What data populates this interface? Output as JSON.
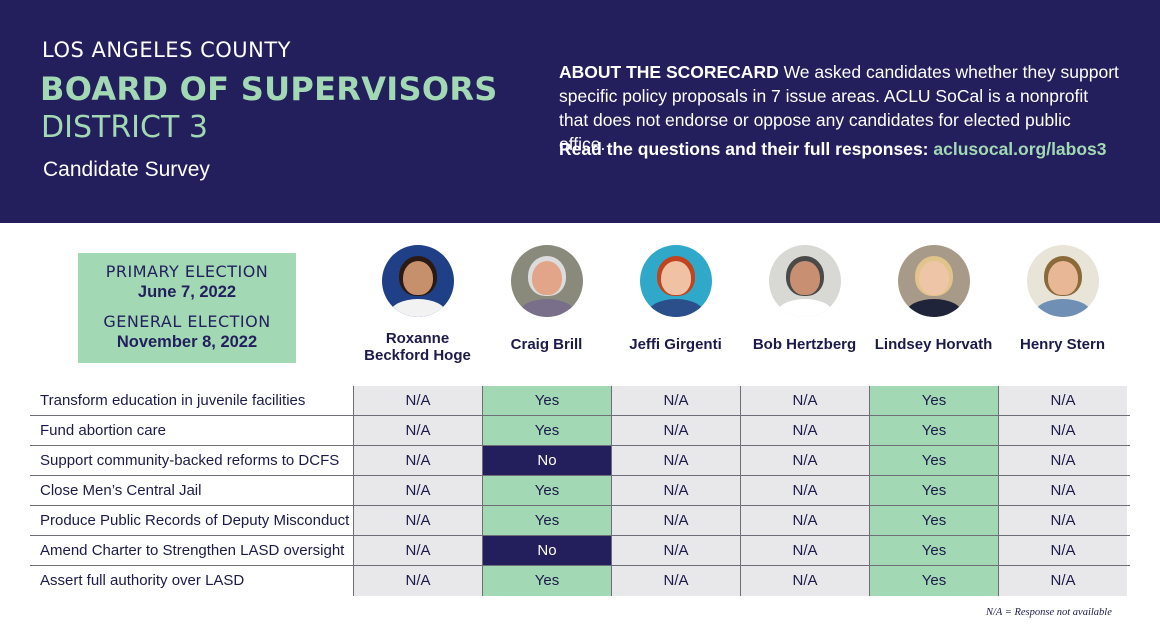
{
  "header": {
    "county": "LOS ANGELES COUNTY",
    "board": "BOARD OF SUPERVISORS",
    "district": "DISTRICT 3",
    "survey": "Candidate Survey",
    "about_label": "ABOUT THE SCORECARD",
    "about_text": "We asked candidates whether they support specific policy proposals in 7 issue areas. ACLU SoCal is a nonprofit that does not endorse or oppose any candidates for elected public office.",
    "read_text": "Read the questions and their full responses:",
    "read_link": "aclusocal.org/labos3"
  },
  "dates": {
    "primary_label": "PRIMARY ELECTION",
    "primary_date": "June 7, 2022",
    "general_label": "GENERAL ELECTION",
    "general_date": "November 8, 2022"
  },
  "candidates": [
    {
      "name_line1": "Roxanne",
      "name_line2": "Beckford Hoge",
      "photo_bg": "#1f3f86",
      "hair": "#2a1a12",
      "skin": "#c7906d",
      "shirt": "#f2f2f2"
    },
    {
      "name_line1": "Craig Brill",
      "name_line2": "",
      "photo_bg": "#8a8a7c",
      "hair": "#dcdcdc",
      "skin": "#e2a58a",
      "shirt": "#7a6f8a"
    },
    {
      "name_line1": "Jeffi Girgenti",
      "name_line2": "",
      "photo_bg": "#2fa8c9",
      "hair": "#c0441e",
      "skin": "#f0c2a3",
      "shirt": "#2a4f8a"
    },
    {
      "name_line1": "Bob Hertzberg",
      "name_line2": "",
      "photo_bg": "#d8d8d4",
      "hair": "#4a4a48",
      "skin": "#c98f72",
      "shirt": "#ffffff"
    },
    {
      "name_line1": "Lindsey Horvath",
      "name_line2": "",
      "photo_bg": "#a89a88",
      "hair": "#e0c48a",
      "skin": "#efc5a8",
      "shirt": "#20243a"
    },
    {
      "name_line1": "Henry Stern",
      "name_line2": "",
      "photo_bg": "#e9e4d8",
      "hair": "#8a6a3a",
      "skin": "#e8b896",
      "shirt": "#6f8fb4"
    }
  ],
  "questions": [
    {
      "label": "Transform education in juvenile facilities",
      "answers": [
        "N/A",
        "Yes",
        "N/A",
        "N/A",
        "Yes",
        "N/A"
      ]
    },
    {
      "label": "Fund abortion care",
      "answers": [
        "N/A",
        "Yes",
        "N/A",
        "N/A",
        "Yes",
        "N/A"
      ]
    },
    {
      "label": "Support community-backed reforms to DCFS",
      "answers": [
        "N/A",
        "No",
        "N/A",
        "N/A",
        "Yes",
        "N/A"
      ]
    },
    {
      "label": "Close Men’s Central Jail",
      "answers": [
        "N/A",
        "Yes",
        "N/A",
        "N/A",
        "Yes",
        "N/A"
      ]
    },
    {
      "label": "Produce Public Records of Deputy Misconduct",
      "answers": [
        "N/A",
        "Yes",
        "N/A",
        "N/A",
        "Yes",
        "N/A"
      ]
    },
    {
      "label": "Amend Charter to Strengthen LASD oversight",
      "answers": [
        "N/A",
        "No",
        "N/A",
        "N/A",
        "Yes",
        "N/A"
      ]
    },
    {
      "label": "Assert full authority over LASD",
      "answers": [
        "N/A",
        "Yes",
        "N/A",
        "N/A",
        "Yes",
        "N/A"
      ]
    }
  ],
  "footnote": "N/A = Response not available",
  "colors": {
    "navy": "#221f5c",
    "mint": "#a3d8b4",
    "na_gray": "#e8e8ea"
  }
}
